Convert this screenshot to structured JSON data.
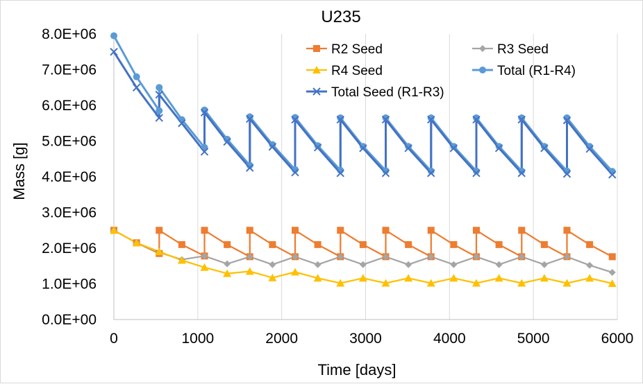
{
  "chart_data": {
    "type": "line",
    "title": "U235",
    "xlabel": "Time [days]",
    "ylabel": "Mass [g]",
    "xlim": [
      0,
      6000
    ],
    "ylim": [
      0,
      8000000
    ],
    "xticks": [
      0,
      1000,
      2000,
      3000,
      4000,
      5000,
      6000
    ],
    "xtick_labels": [
      "0",
      "1000",
      "2000",
      "3000",
      "4000",
      "5000",
      "6000"
    ],
    "yticks": [
      0,
      1000000,
      2000000,
      3000000,
      4000000,
      5000000,
      6000000,
      7000000,
      8000000
    ],
    "ytick_labels": [
      "0.0E+00",
      "1.0E+06",
      "2.0E+06",
      "3.0E+06",
      "4.0E+06",
      "5.0E+06",
      "6.0E+06",
      "7.0E+06",
      "8.0E+06"
    ],
    "grid": "vertical",
    "legend_position": "top-right",
    "series": [
      {
        "name": "R2 Seed",
        "color": "#ED7D31",
        "marker": "square",
        "x": [
          0,
          270,
          540,
          540,
          810,
          1080,
          1080,
          1350,
          1620,
          1620,
          1890,
          2160,
          2160,
          2430,
          2700,
          2700,
          2970,
          3240,
          3240,
          3510,
          3780,
          3780,
          4050,
          4320,
          4320,
          4590,
          4860,
          4860,
          5130,
          5400,
          5400,
          5670,
          5940
        ],
        "y": [
          2500000,
          2150000,
          1850000,
          2500000,
          2100000,
          1780000,
          2500000,
          2100000,
          1760000,
          2500000,
          2100000,
          1760000,
          2500000,
          2100000,
          1760000,
          2500000,
          2100000,
          1760000,
          2500000,
          2100000,
          1760000,
          2500000,
          2100000,
          1760000,
          2500000,
          2100000,
          1760000,
          2500000,
          2100000,
          1760000,
          2500000,
          2100000,
          1760000
        ]
      },
      {
        "name": "R3 Seed",
        "color": "#A5A5A5",
        "marker": "diamond",
        "x": [
          0,
          270,
          540,
          810,
          1080,
          1350,
          1620,
          1890,
          2160,
          2430,
          2700,
          2970,
          3240,
          3510,
          3780,
          4050,
          4320,
          4590,
          4860,
          5130,
          5400,
          5670,
          5940
        ],
        "y": [
          2500000,
          2150000,
          1880000,
          1680000,
          1780000,
          1560000,
          1760000,
          1540000,
          1760000,
          1540000,
          1760000,
          1540000,
          1760000,
          1540000,
          1760000,
          1540000,
          1760000,
          1540000,
          1760000,
          1540000,
          1760000,
          1520000,
          1320000
        ]
      },
      {
        "name": "R4 Seed",
        "color": "#FFC000",
        "marker": "triangle",
        "x": [
          0,
          270,
          540,
          810,
          1080,
          1350,
          1620,
          1890,
          2160,
          2430,
          2700,
          2970,
          3240,
          3510,
          3780,
          4050,
          4320,
          4590,
          4860,
          5130,
          5400,
          5670,
          5940
        ],
        "y": [
          2500000,
          2150000,
          1900000,
          1660000,
          1460000,
          1290000,
          1350000,
          1170000,
          1330000,
          1160000,
          1020000,
          1160000,
          1020000,
          1160000,
          1020000,
          1160000,
          1020000,
          1160000,
          1020000,
          1160000,
          1020000,
          1160000,
          1010000
        ]
      },
      {
        "name": "Total (R1-R4)",
        "color": "#5B9BD5",
        "marker": "circle",
        "x": [
          0,
          270,
          540,
          540,
          810,
          1080,
          1080,
          1350,
          1620,
          1620,
          1890,
          2160,
          2160,
          2430,
          2700,
          2700,
          2970,
          3240,
          3240,
          3510,
          3780,
          3780,
          4050,
          4320,
          4320,
          4590,
          4860,
          4860,
          5130,
          5400,
          5400,
          5670,
          5940
        ],
        "y": [
          7950000,
          6800000,
          5850000,
          6500000,
          5600000,
          4820000,
          5870000,
          5050000,
          4320000,
          5680000,
          4900000,
          4200000,
          5660000,
          4870000,
          4180000,
          5650000,
          4850000,
          4170000,
          5650000,
          4850000,
          4160000,
          5650000,
          4850000,
          4160000,
          5650000,
          4850000,
          4160000,
          5650000,
          4850000,
          4160000,
          5650000,
          4850000,
          4150000
        ]
      },
      {
        "name": "Total Seed (R1-R3)",
        "color": "#4472C4",
        "marker": "x",
        "x": [
          0,
          270,
          540,
          540,
          810,
          1080,
          1080,
          1350,
          1620,
          1620,
          1890,
          2160,
          2160,
          2430,
          2700,
          2700,
          2970,
          3240,
          3240,
          3510,
          3780,
          3780,
          4050,
          4320,
          4320,
          4590,
          4860,
          4860,
          5130,
          5400,
          5400,
          5670,
          5940
        ],
        "y": [
          7500000,
          6500000,
          5650000,
          6300000,
          5500000,
          4700000,
          5800000,
          4980000,
          4250000,
          5620000,
          4840000,
          4120000,
          5600000,
          4820000,
          4100000,
          5600000,
          4800000,
          4100000,
          5600000,
          4800000,
          4100000,
          5600000,
          4800000,
          4100000,
          5600000,
          4800000,
          4100000,
          5600000,
          4800000,
          4080000,
          5580000,
          4780000,
          4060000
        ]
      }
    ]
  }
}
